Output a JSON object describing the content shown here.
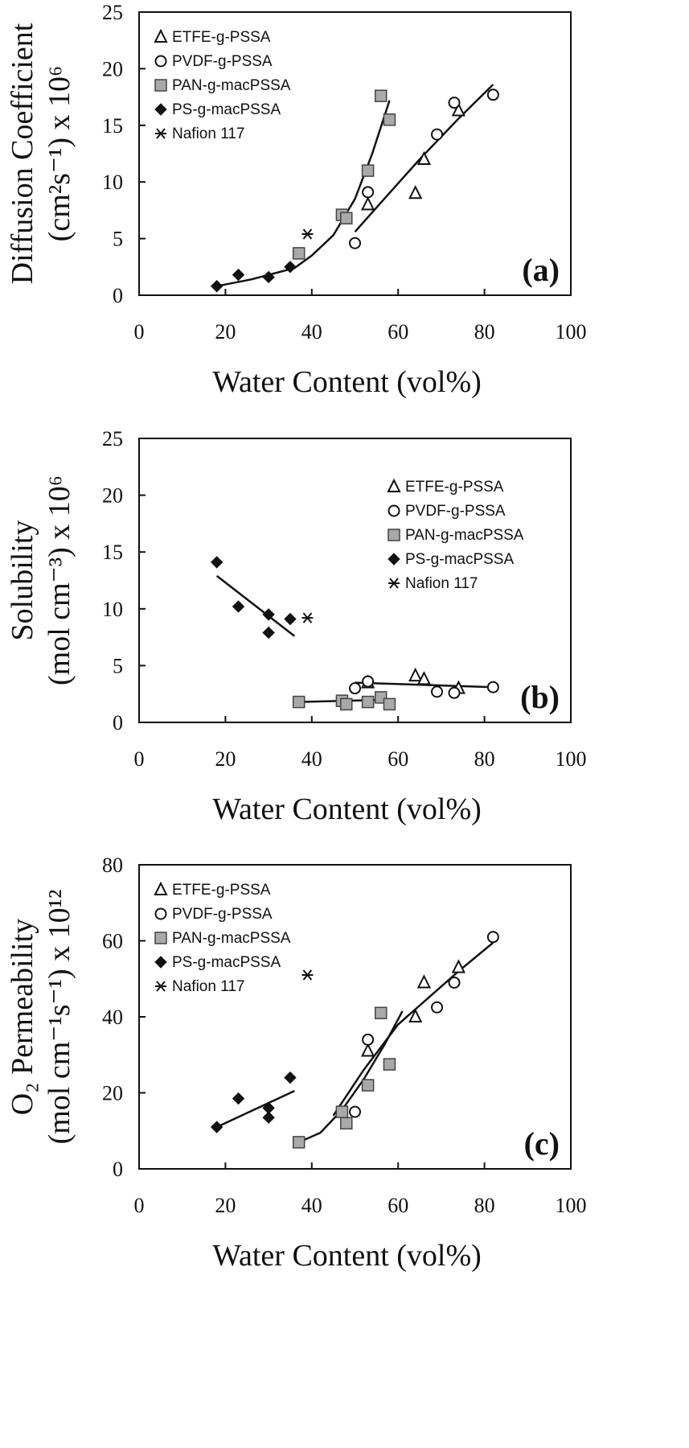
{
  "figure": {
    "xlabel": "Water Content (vol%)"
  },
  "chart_data": [
    {
      "type": "scatter",
      "panel_label": "(a)",
      "ylabel_line1": "Diffusion Coefficient",
      "ylabel_line2": "(cm²s⁻¹) x 10⁶",
      "xlabel": "Water Content (vol%)",
      "xlim": [
        0,
        100
      ],
      "ylim": [
        0,
        25
      ],
      "xticks": [
        "0",
        "20",
        "40",
        "60",
        "80",
        "100"
      ],
      "yticks": [
        "0",
        "5",
        "10",
        "15",
        "20",
        "25"
      ],
      "legend_position": "top-left",
      "series": [
        {
          "name": "ETFE-g-PSSA",
          "marker": "triangle",
          "points": [
            [
              53,
              8.0
            ],
            [
              64,
              9.0
            ],
            [
              66,
              12.0
            ],
            [
              74,
              16.3
            ]
          ]
        },
        {
          "name": "PVDF-g-PSSA",
          "marker": "circle",
          "points": [
            [
              50,
              4.6
            ],
            [
              53,
              9.1
            ],
            [
              69,
              14.2
            ],
            [
              73,
              17.0
            ],
            [
              82,
              17.7
            ]
          ]
        },
        {
          "name": "PAN-g-macPSSA",
          "marker": "square",
          "points": [
            [
              37,
              3.7
            ],
            [
              47,
              7.1
            ],
            [
              48,
              6.8
            ],
            [
              53,
              11.0
            ],
            [
              56,
              17.6
            ],
            [
              58,
              15.5
            ]
          ]
        },
        {
          "name": "PS-g-macPSSA",
          "marker": "diamond",
          "points": [
            [
              18,
              0.8
            ],
            [
              23,
              1.8
            ],
            [
              30,
              1.6
            ],
            [
              35,
              2.5
            ]
          ]
        },
        {
          "name": "Nafion 117",
          "marker": "star",
          "points": [
            [
              39,
              5.4
            ]
          ]
        }
      ],
      "fit_lines": [
        [
          [
            18,
            0.8
          ],
          [
            26,
            1.4
          ],
          [
            36,
            2.4
          ],
          [
            40,
            3.5
          ],
          [
            45,
            5.3
          ],
          [
            50,
            8.5
          ],
          [
            54,
            12.5
          ],
          [
            58,
            17.2
          ]
        ],
        [
          [
            50,
            5.6
          ],
          [
            57,
            8.6
          ],
          [
            65,
            12.0
          ],
          [
            74,
            15.6
          ],
          [
            82,
            18.6
          ]
        ]
      ]
    },
    {
      "type": "scatter",
      "panel_label": "(b)",
      "ylabel_line1": "Solubility",
      "ylabel_line2": "(mol cm⁻³) x 10⁶",
      "xlabel": "Water Content (vol%)",
      "xlim": [
        0,
        100
      ],
      "ylim": [
        0,
        25
      ],
      "xticks": [
        "0",
        "20",
        "40",
        "60",
        "80",
        "100"
      ],
      "yticks": [
        "0",
        "5",
        "10",
        "15",
        "20",
        "25"
      ],
      "legend_position": "top-right",
      "series": [
        {
          "name": "ETFE-g-PSSA",
          "marker": "triangle",
          "points": [
            [
              53,
              3.5
            ],
            [
              64,
              4.1
            ],
            [
              66,
              3.8
            ],
            [
              74,
              3.0
            ]
          ]
        },
        {
          "name": "PVDF-g-PSSA",
          "marker": "circle",
          "points": [
            [
              50,
              3.0
            ],
            [
              53,
              3.6
            ],
            [
              69,
              2.7
            ],
            [
              73,
              2.6
            ],
            [
              82,
              3.1
            ]
          ]
        },
        {
          "name": "PAN-g-macPSSA",
          "marker": "square",
          "points": [
            [
              37,
              1.8
            ],
            [
              47,
              1.9
            ],
            [
              48,
              1.6
            ],
            [
              53,
              1.8
            ],
            [
              56,
              2.2
            ],
            [
              58,
              1.6
            ]
          ]
        },
        {
          "name": "PS-g-macPSSA",
          "marker": "diamond",
          "points": [
            [
              18,
              14.1
            ],
            [
              23,
              10.2
            ],
            [
              30,
              9.5
            ],
            [
              30,
              7.9
            ],
            [
              35,
              9.1
            ]
          ]
        },
        {
          "name": "Nafion 117",
          "marker": "star",
          "points": [
            [
              39,
              9.2
            ]
          ]
        }
      ],
      "fit_lines": [
        [
          [
            18,
            12.9
          ],
          [
            36,
            7.6
          ]
        ],
        [
          [
            37,
            1.8
          ],
          [
            58,
            2.0
          ]
        ],
        [
          [
            50,
            3.5
          ],
          [
            82,
            3.1
          ]
        ]
      ]
    },
    {
      "type": "scatter",
      "panel_label": "(c)",
      "ylabel_line1": "O₂ Permeability",
      "ylabel_line2": "(mol cm⁻¹s⁻¹) x 10¹²",
      "xlabel": "Water Content (vol%)",
      "xlim": [
        0,
        100
      ],
      "ylim": [
        0,
        80
      ],
      "xticks": [
        "0",
        "20",
        "40",
        "60",
        "80",
        "100"
      ],
      "yticks": [
        "0",
        "20",
        "40",
        "60",
        "80"
      ],
      "legend_position": "top-left",
      "series": [
        {
          "name": "ETFE-g-PSSA",
          "marker": "triangle",
          "points": [
            [
              53,
              31
            ],
            [
              64,
              40
            ],
            [
              66,
              49
            ],
            [
              74,
              53
            ]
          ]
        },
        {
          "name": "PVDF-g-PSSA",
          "marker": "circle",
          "points": [
            [
              50,
              15
            ],
            [
              53,
              34
            ],
            [
              69,
              42.5
            ],
            [
              73,
              49
            ],
            [
              82,
              61
            ]
          ]
        },
        {
          "name": "PAN-g-macPSSA",
          "marker": "square",
          "points": [
            [
              37,
              7
            ],
            [
              47,
              15
            ],
            [
              48,
              12
            ],
            [
              53,
              22
            ],
            [
              56,
              41
            ],
            [
              58,
              27.5
            ]
          ]
        },
        {
          "name": "PS-g-macPSSA",
          "marker": "diamond",
          "points": [
            [
              18,
              11
            ],
            [
              23,
              18.5
            ],
            [
              30,
              16
            ],
            [
              30,
              13.5
            ],
            [
              35,
              24
            ]
          ]
        },
        {
          "name": "Nafion 117",
          "marker": "star",
          "points": [
            [
              39,
              51
            ]
          ]
        }
      ],
      "fit_lines": [
        [
          [
            18,
            11
          ],
          [
            36,
            20.5
          ]
        ],
        [
          [
            37,
            7
          ],
          [
            42,
            9.5
          ],
          [
            47,
            15.5
          ],
          [
            52,
            23.5
          ],
          [
            57,
            33
          ],
          [
            61,
            41.5
          ]
        ],
        [
          [
            45,
            14
          ],
          [
            52,
            26
          ],
          [
            60,
            38
          ],
          [
            67,
            45
          ],
          [
            74,
            52
          ],
          [
            82,
            59.5
          ]
        ]
      ]
    }
  ]
}
